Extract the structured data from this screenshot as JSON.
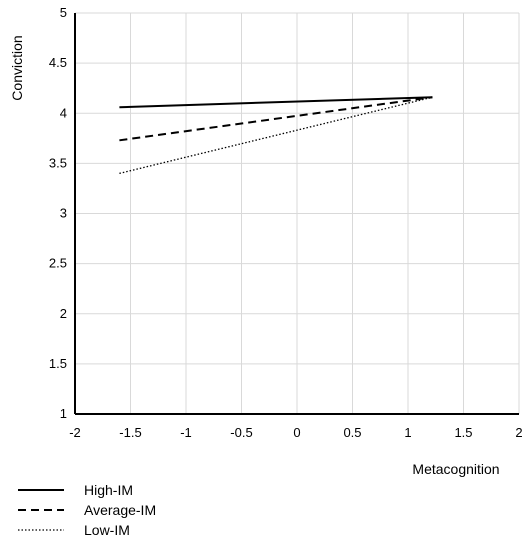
{
  "chart_data": {
    "type": "line",
    "xlabel": "Metacognition",
    "ylabel": "Conviction",
    "xlim": [
      -2,
      2
    ],
    "ylim": [
      1,
      5
    ],
    "x_ticks": [
      -2,
      -1.5,
      -1,
      -0.5,
      0,
      0.5,
      1,
      1.5,
      2
    ],
    "x_tick_labels": [
      "-2",
      "-1.5",
      "-1",
      "-0.5",
      "0",
      "0.5",
      "1",
      "1.5",
      "2"
    ],
    "y_ticks": [
      1,
      1.5,
      2,
      2.5,
      3,
      3.5,
      4,
      4.5,
      5
    ],
    "y_tick_labels": [
      "1",
      "1.5",
      "2",
      "2.5",
      "3",
      "3.5",
      "4",
      "4.5",
      "5"
    ],
    "grid": true,
    "legend_position": "bottom-left",
    "series": [
      {
        "name": "High-IM",
        "style": "solid",
        "color": "#000000",
        "x": [
          -1.6,
          1.22
        ],
        "y": [
          4.06,
          4.16
        ]
      },
      {
        "name": "Average-IM",
        "style": "dashed",
        "color": "#000000",
        "x": [
          -1.6,
          1.22
        ],
        "y": [
          3.73,
          4.16
        ]
      },
      {
        "name": "Low-IM",
        "style": "dotted",
        "color": "#000000",
        "x": [
          -1.6,
          1.22
        ],
        "y": [
          3.4,
          4.16
        ]
      }
    ]
  }
}
